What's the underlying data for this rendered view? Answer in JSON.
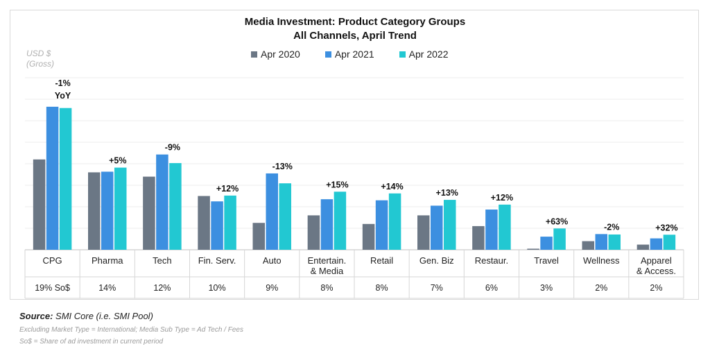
{
  "chart_data": {
    "type": "bar",
    "title_line1": "Media Investment: Product Category Groups",
    "title_line2": "All Channels, April Trend",
    "ylabel_line1": "USD $",
    "ylabel_line2": "(Gross)",
    "categories": [
      "CPG",
      "Pharma",
      "Tech",
      "Fin. Serv.",
      "Auto",
      "Entertain. & Media",
      "Retail",
      "Gen. Biz",
      "Restaur.",
      "Travel",
      "Wellness",
      "Apparel & Access."
    ],
    "category_lines": [
      [
        "CPG"
      ],
      [
        "Pharma"
      ],
      [
        "Tech"
      ],
      [
        "Fin. Serv."
      ],
      [
        "Auto"
      ],
      [
        "Entertain.",
        "& Media"
      ],
      [
        "Retail"
      ],
      [
        "Gen. Biz"
      ],
      [
        "Restaur."
      ],
      [
        "Travel"
      ],
      [
        "Wellness"
      ],
      [
        "Apparel",
        "& Access."
      ]
    ],
    "share_labels": [
      "19% So$",
      "14%",
      "12%",
      "10%",
      "9%",
      "8%",
      "8%",
      "7%",
      "6%",
      "3%",
      "2%",
      "2%"
    ],
    "yoy_labels": [
      "-1%",
      "+5%",
      "-9%",
      "+12%",
      "-13%",
      "+15%",
      "+14%",
      "+13%",
      "+12%",
      "+63%",
      "-2%",
      "+32%"
    ],
    "yoy_suffix_first": "YoY",
    "series": [
      {
        "name": "Apr 2020",
        "color": "#6b7785",
        "values": [
          42,
          36,
          34,
          25,
          12.5,
          16,
          12,
          16,
          11,
          0.5,
          4,
          2.4
        ]
      },
      {
        "name": "Apr 2021",
        "color": "#3c8fe0",
        "values": [
          66.5,
          36.3,
          44.3,
          22.5,
          35.5,
          23.5,
          23,
          20.5,
          18.7,
          6.1,
          7.3,
          5.3
        ]
      },
      {
        "name": "Apr 2022",
        "color": "#22c8d2",
        "values": [
          65.9,
          38.2,
          40.3,
          25.2,
          30.9,
          27,
          26.2,
          23.2,
          21,
          9.9,
          7.1,
          7
        ]
      }
    ],
    "ylim": [
      0,
      80
    ],
    "grid": true,
    "legend_position": "top"
  },
  "footer": {
    "source_key": "Source:",
    "source_value": "SMI Core (i.e. SMI Pool)",
    "note1": "Excluding Market Type = International; Media Sub Type = Ad Tech / Fees",
    "note2": "So$ = Share of ad investment in current period"
  }
}
